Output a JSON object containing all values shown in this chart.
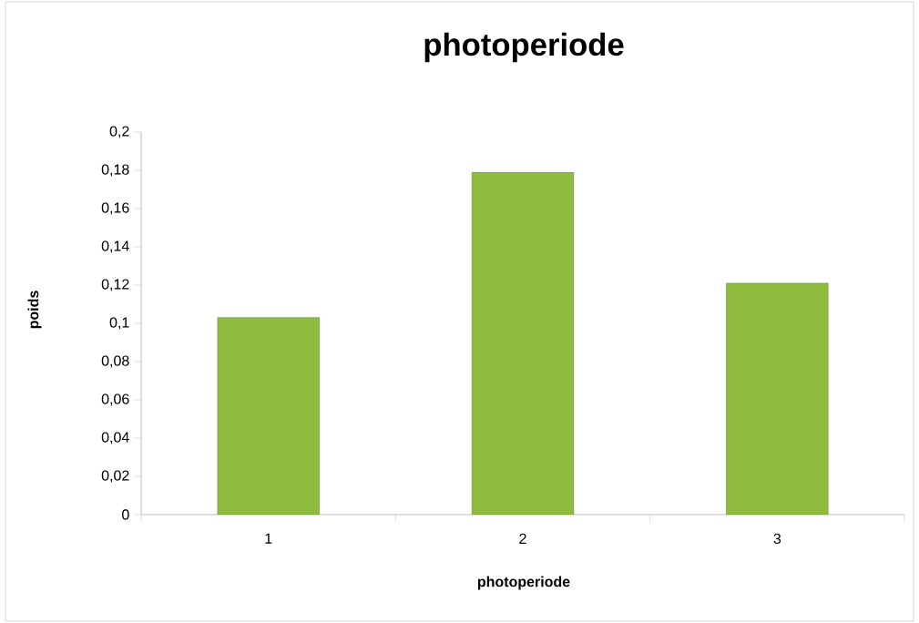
{
  "chart_data": {
    "type": "bar",
    "title": "photoperiode",
    "xlabel": "photoperiode",
    "ylabel": "poids",
    "categories": [
      "1",
      "2",
      "3"
    ],
    "values": [
      0.103,
      0.179,
      0.121
    ],
    "color": "#8fbc3f",
    "ylim": [
      0,
      0.2
    ],
    "yticks": [
      {
        "value": 0,
        "label": "0"
      },
      {
        "value": 0.02,
        "label": "0,02"
      },
      {
        "value": 0.04,
        "label": "0,04"
      },
      {
        "value": 0.06,
        "label": "0,06"
      },
      {
        "value": 0.08,
        "label": "0,08"
      },
      {
        "value": 0.1,
        "label": "0,1"
      },
      {
        "value": 0.12,
        "label": "0,12"
      },
      {
        "value": 0.14,
        "label": "0,14"
      },
      {
        "value": 0.16,
        "label": "0,16"
      },
      {
        "value": 0.18,
        "label": "0,18"
      },
      {
        "value": 0.2,
        "label": "0,2"
      }
    ]
  }
}
